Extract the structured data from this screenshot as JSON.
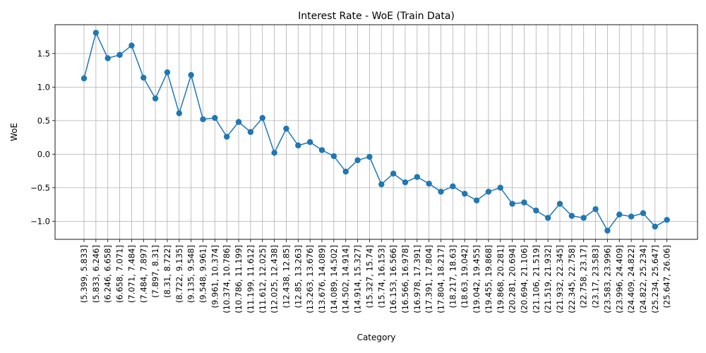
{
  "chart_data": {
    "type": "line",
    "title": "Interest Rate - WoE (Train Data)",
    "xlabel": "Category",
    "ylabel": "WoE",
    "ylim": [
      -1.27,
      1.93
    ],
    "yticks": [
      -1.0,
      -0.5,
      0.0,
      0.5,
      1.0,
      1.5
    ],
    "ytick_labels": [
      "−1.0",
      "−0.5",
      "0.0",
      "0.5",
      "1.0",
      "1.5"
    ],
    "grid": true,
    "marker": "circle",
    "color": "#1f77b4",
    "categories": [
      "(5.399, 5.833]",
      "(5.833, 6.246]",
      "(6.246, 6.658]",
      "(6.658, 7.071]",
      "(7.071, 7.484]",
      "(7.484, 7.897]",
      "(7.897, 8.31]",
      "(8.31, 8.722]",
      "(8.722, 9.135]",
      "(9.135, 9.548]",
      "(9.548, 9.961]",
      "(9.961, 10.374]",
      "(10.374, 10.786]",
      "(10.786, 11.199]",
      "(11.199, 11.612]",
      "(11.612, 12.025]",
      "(12.025, 12.438]",
      "(12.438, 12.85]",
      "(12.85, 13.263]",
      "(13.263, 13.676]",
      "(13.676, 14.089]",
      "(14.089, 14.502]",
      "(14.502, 14.914]",
      "(14.914, 15.327]",
      "(15.327, 15.74]",
      "(15.74, 16.153]",
      "(16.153, 16.566]",
      "(16.566, 16.978]",
      "(16.978, 17.391]",
      "(17.391, 17.804]",
      "(17.804, 18.217]",
      "(18.217, 18.63]",
      "(18.63, 19.042]",
      "(19.042, 19.455]",
      "(19.455, 19.868]",
      "(19.868, 20.281]",
      "(20.281, 20.694]",
      "(20.694, 21.106]",
      "(21.106, 21.519]",
      "(21.519, 21.932]",
      "(21.932, 22.345]",
      "(22.345, 22.758]",
      "(22.758, 23.17]",
      "(23.17, 23.583]",
      "(23.583, 23.996]",
      "(23.996, 24.409]",
      "(24.409, 24.822]",
      "(24.822, 25.234]",
      "(25.234, 25.647]",
      "(25.647, 26.06]"
    ],
    "values": [
      1.13,
      1.81,
      1.43,
      1.48,
      1.62,
      1.14,
      0.83,
      1.22,
      0.61,
      1.18,
      0.52,
      0.54,
      0.26,
      0.48,
      0.33,
      0.54,
      0.02,
      0.38,
      0.13,
      0.18,
      0.06,
      -0.03,
      -0.26,
      -0.09,
      -0.04,
      -0.45,
      -0.29,
      -0.42,
      -0.34,
      -0.44,
      -0.56,
      -0.48,
      -0.59,
      -0.69,
      -0.56,
      -0.5,
      -0.74,
      -0.72,
      -0.84,
      -0.95,
      -0.74,
      -0.92,
      -0.95,
      -0.82,
      -1.14,
      -0.9,
      -0.93,
      -0.88,
      -1.08,
      -0.98
    ]
  }
}
